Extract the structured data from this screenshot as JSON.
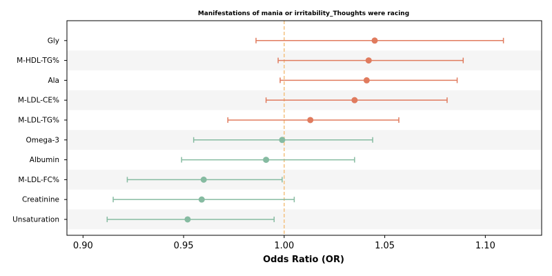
{
  "chart_data": {
    "type": "forest",
    "title": "Manifestations of mania or irritability_Thoughts were racing",
    "xlabel": "Odds Ratio (OR)",
    "xlim": [
      0.892,
      1.128
    ],
    "xticks": [
      0.9,
      0.95,
      1.0,
      1.05,
      1.1
    ],
    "xtick_labels": [
      "0.90",
      "0.95",
      "1.00",
      "1.05",
      "1.10"
    ],
    "reference_line": 1.0,
    "colors": {
      "positive": "#e07b5e",
      "negative": "#86bba1",
      "reference": "#f4c07f",
      "band": "#f5f5f5"
    },
    "rows": [
      {
        "label": "Gly",
        "or": 1.045,
        "lower": 0.986,
        "upper": 1.109
      },
      {
        "label": "M-HDL-TG%",
        "or": 1.042,
        "lower": 0.997,
        "upper": 1.089
      },
      {
        "label": "Ala",
        "or": 1.041,
        "lower": 0.998,
        "upper": 1.086
      },
      {
        "label": "M-LDL-CE%",
        "or": 1.035,
        "lower": 0.991,
        "upper": 1.081
      },
      {
        "label": "M-LDL-TG%",
        "or": 1.013,
        "lower": 0.972,
        "upper": 1.057
      },
      {
        "label": "Omega-3",
        "or": 0.999,
        "lower": 0.955,
        "upper": 1.044
      },
      {
        "label": "Albumin",
        "or": 0.991,
        "lower": 0.949,
        "upper": 1.035
      },
      {
        "label": "M-LDL-FC%",
        "or": 0.96,
        "lower": 0.922,
        "upper": 0.999
      },
      {
        "label": "Creatinine",
        "or": 0.959,
        "lower": 0.915,
        "upper": 1.005
      },
      {
        "label": "Unsaturation",
        "or": 0.952,
        "lower": 0.912,
        "upper": 0.995
      }
    ]
  }
}
